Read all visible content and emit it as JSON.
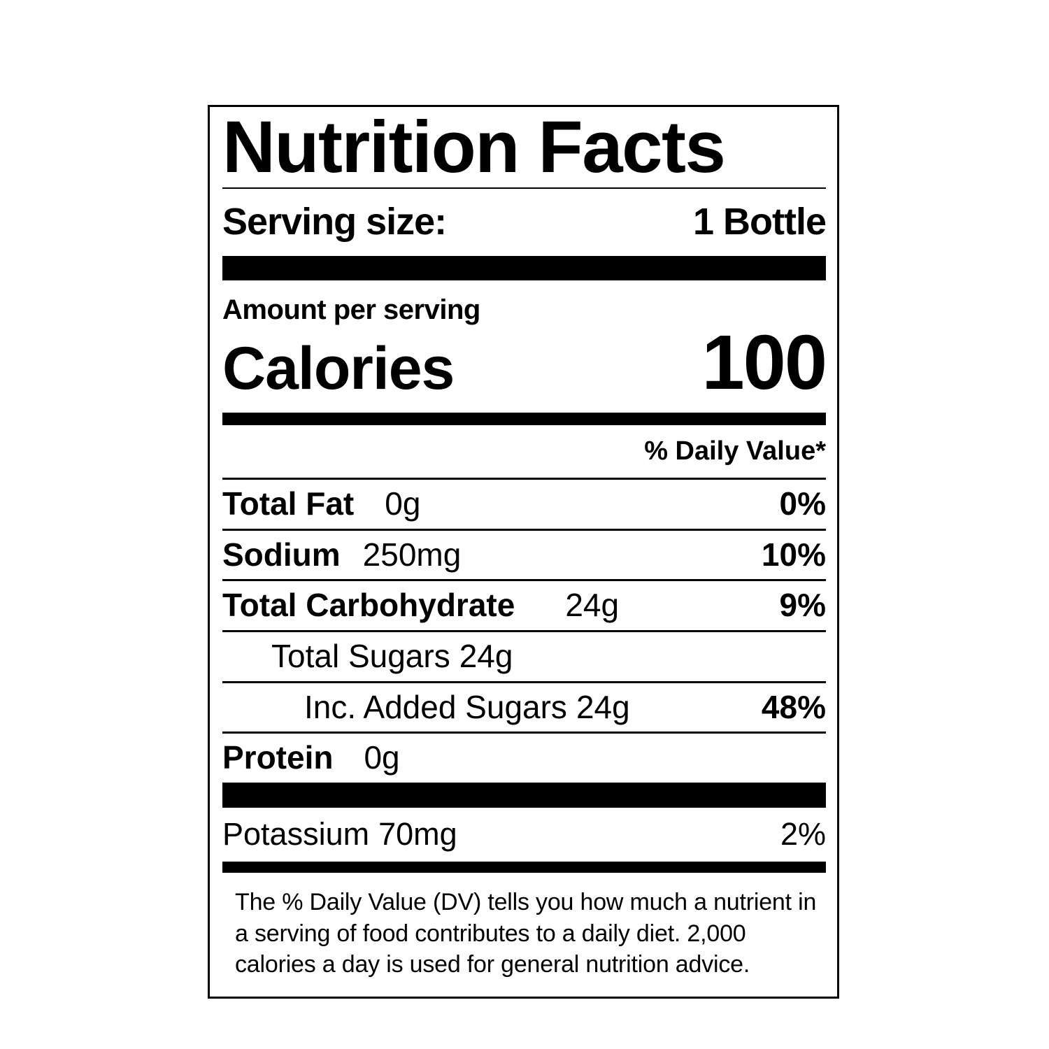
{
  "label": {
    "title": "Nutrition Facts",
    "serving": {
      "label": "Serving size:",
      "value": "1 Bottle"
    },
    "amount_per_serving": "Amount per serving",
    "calories": {
      "label": "Calories",
      "value": "100"
    },
    "daily_value_header": "% Daily Value*",
    "rows": [
      {
        "name": "Total Fat",
        "amount": "0g",
        "dv": "0%"
      },
      {
        "name": "Sodium",
        "amount": "250mg",
        "dv": "10%"
      },
      {
        "name": "Total Carbohydrate",
        "amount": "24g",
        "dv": "9%"
      },
      {
        "name": "Total Sugars",
        "amount": "24g",
        "dv": ""
      },
      {
        "name": "Inc. Added Sugars",
        "amount": "24g",
        "dv": "48%"
      },
      {
        "name": "Protein",
        "amount": "0g",
        "dv": ""
      }
    ],
    "potassium": {
      "name": "Potassium",
      "amount": "70mg",
      "dv": "2%"
    },
    "footnote": "The % Daily Value (DV) tells you how much a nutrient in a serving of food contributes to a daily diet. 2,000 calories a day is used for general nutrition advice.",
    "colors": {
      "ink": "#000000",
      "background": "#ffffff"
    }
  }
}
